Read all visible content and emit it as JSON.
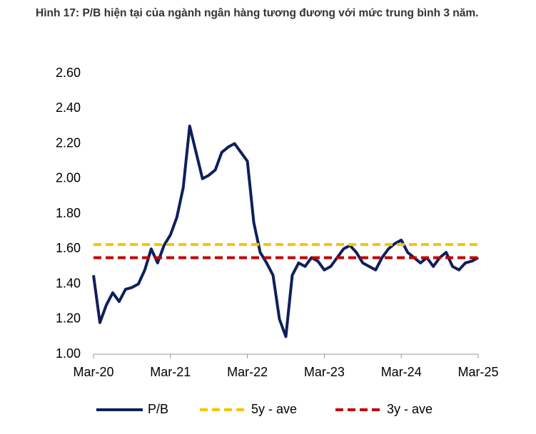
{
  "chart_data": {
    "type": "line",
    "title": "Hình 17: P/B hiện tại của ngành ngân hàng tương đương với mức trung bình 3 năm.",
    "x": [
      "2020-03",
      "2020-04",
      "2020-05",
      "2020-06",
      "2020-07",
      "2020-08",
      "2020-09",
      "2020-10",
      "2020-11",
      "2020-12",
      "2021-01",
      "2021-02",
      "2021-03",
      "2021-04",
      "2021-05",
      "2021-06",
      "2021-07",
      "2021-08",
      "2021-09",
      "2021-10",
      "2021-11",
      "2021-12",
      "2022-01",
      "2022-02",
      "2022-03",
      "2022-04",
      "2022-05",
      "2022-06",
      "2022-07",
      "2022-08",
      "2022-09",
      "2022-10",
      "2022-11",
      "2022-12",
      "2023-01",
      "2023-02",
      "2023-03",
      "2023-04",
      "2023-05",
      "2023-06",
      "2023-07",
      "2023-08",
      "2023-09",
      "2023-10",
      "2023-11",
      "2023-12",
      "2024-01",
      "2024-02",
      "2024-03",
      "2024-04",
      "2024-05",
      "2024-06",
      "2024-07",
      "2024-08",
      "2024-09",
      "2024-10",
      "2024-11",
      "2024-12",
      "2025-01",
      "2025-02",
      "2025-03"
    ],
    "series": [
      {
        "name": "P/B",
        "color": "#0e1f5b",
        "values": [
          1.45,
          1.18,
          1.28,
          1.35,
          1.3,
          1.37,
          1.38,
          1.4,
          1.48,
          1.6,
          1.52,
          1.62,
          1.68,
          1.78,
          1.95,
          2.3,
          2.15,
          2.0,
          2.02,
          2.05,
          2.15,
          2.18,
          2.2,
          2.15,
          2.1,
          1.75,
          1.58,
          1.52,
          1.45,
          1.2,
          1.1,
          1.45,
          1.52,
          1.5,
          1.55,
          1.53,
          1.48,
          1.5,
          1.55,
          1.6,
          1.62,
          1.58,
          1.52,
          1.5,
          1.48,
          1.55,
          1.6,
          1.63,
          1.65,
          1.58,
          1.55,
          1.52,
          1.55,
          1.5,
          1.55,
          1.58,
          1.5,
          1.48,
          1.52,
          1.53,
          1.55
        ]
      }
    ],
    "reference_lines": [
      {
        "name": "5y - ave",
        "color": "#f5c400",
        "value": 1.625
      },
      {
        "name": "3y - ave",
        "color": "#c00000",
        "value": 1.55
      }
    ],
    "ylim": [
      1.0,
      2.6
    ],
    "yticks": [
      {
        "value": 1.0,
        "label": "1.00"
      },
      {
        "value": 1.2,
        "label": "1.20"
      },
      {
        "value": 1.4,
        "label": "1.40"
      },
      {
        "value": 1.6,
        "label": "1.60"
      },
      {
        "value": 1.8,
        "label": "1.80"
      },
      {
        "value": 2.0,
        "label": "2.00"
      },
      {
        "value": 2.2,
        "label": "2.20"
      },
      {
        "value": 2.4,
        "label": "2.40"
      },
      {
        "value": 2.6,
        "label": "2.60"
      }
    ],
    "xticks": [
      {
        "value": "2020-03",
        "label": "Mar-20"
      },
      {
        "value": "2021-03",
        "label": "Mar-21"
      },
      {
        "value": "2022-03",
        "label": "Mar-22"
      },
      {
        "value": "2023-03",
        "label": "Mar-23"
      },
      {
        "value": "2024-03",
        "label": "Mar-24"
      },
      {
        "value": "2025-03",
        "label": "Mar-25"
      }
    ]
  }
}
